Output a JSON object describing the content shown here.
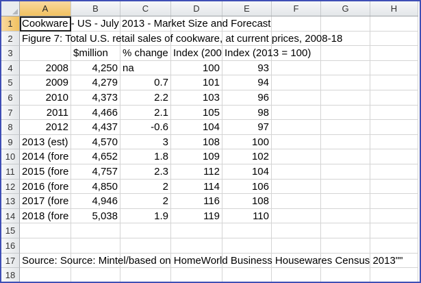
{
  "columns": [
    "A",
    "B",
    "C",
    "D",
    "E",
    "F",
    "G",
    "H"
  ],
  "rows": [
    {
      "n": "1",
      "A": "Cookware - US - July 2013 - Market Size and Forecast"
    },
    {
      "n": "2",
      "A": "Figure 7: Total U.S. retail sales of cookware, at current prices, 2008-18"
    },
    {
      "n": "3",
      "A": "",
      "B": "$million",
      "C": "% change",
      "D": "Index (200",
      "E": "Index (2013 = 100)"
    },
    {
      "n": "4",
      "A": "2008",
      "B": "4,250",
      "C": "na",
      "D": "100",
      "E": "93"
    },
    {
      "n": "5",
      "A": "2009",
      "B": "4,279",
      "C": "0.7",
      "D": "101",
      "E": "94"
    },
    {
      "n": "6",
      "A": "2010",
      "B": "4,373",
      "C": "2.2",
      "D": "103",
      "E": "96"
    },
    {
      "n": "7",
      "A": "2011",
      "B": "4,466",
      "C": "2.1",
      "D": "105",
      "E": "98"
    },
    {
      "n": "8",
      "A": "2012",
      "B": "4,437",
      "C": "-0.6",
      "D": "104",
      "E": "97"
    },
    {
      "n": "9",
      "A": "2013 (est)",
      "B": "4,570",
      "C": "3",
      "D": "108",
      "E": "100"
    },
    {
      "n": "10",
      "A": "2014 (fore",
      "B": "4,652",
      "C": "1.8",
      "D": "109",
      "E": "102"
    },
    {
      "n": "11",
      "A": "2015 (fore",
      "B": "4,757",
      "C": "2.3",
      "D": "112",
      "E": "104"
    },
    {
      "n": "12",
      "A": "2016 (fore",
      "B": "4,850",
      "C": "2",
      "D": "114",
      "E": "106"
    },
    {
      "n": "13",
      "A": "2017 (fore",
      "B": "4,946",
      "C": "2",
      "D": "116",
      "E": "108"
    },
    {
      "n": "14",
      "A": "2018 (fore",
      "B": "5,038",
      "C": "1.9",
      "D": "119",
      "E": "110"
    },
    {
      "n": "15",
      "A": ""
    },
    {
      "n": "16",
      "A": ""
    },
    {
      "n": "17",
      "A": "Source: Source: Mintel/based on HomeWorld Business Housewares Census 2013\"\""
    },
    {
      "n": "18",
      "A": ""
    }
  ]
}
